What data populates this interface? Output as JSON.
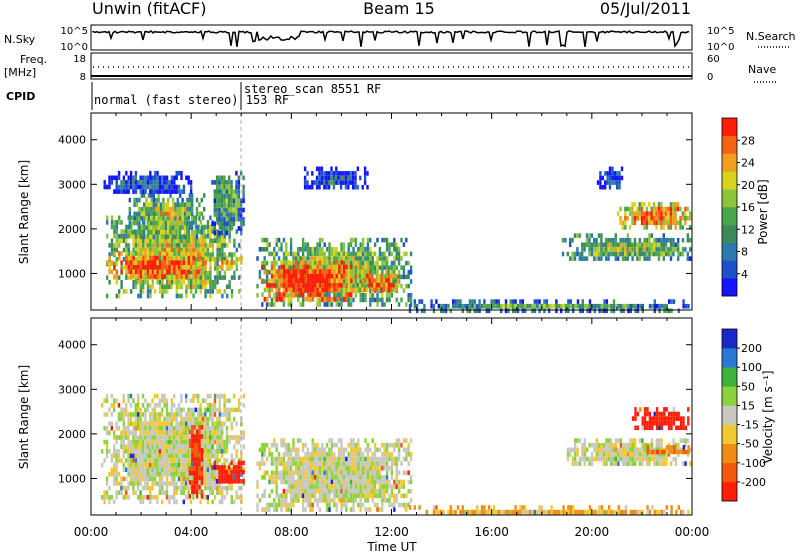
{
  "header": {
    "station": "Unwin (fitACF)",
    "beam": "Beam 15",
    "date": "05/Jul/2011"
  },
  "status_panels": {
    "nsky_label": "N.Sky",
    "nsky_ticks": [
      "10^5",
      "10^0"
    ],
    "nsearch_label": "N.Search",
    "nsearch_ticks": [
      "10^5",
      "10^0"
    ],
    "freq_label": "Freq.",
    "freq_unit": "[MHz]",
    "freq_ticks": [
      "18",
      "8"
    ],
    "nave_label": "Nave",
    "nave_ticks": [
      "60",
      "0"
    ],
    "cpid_label": "CPID",
    "cpid_modes": [
      "normal (fast stereo) 153 RF",
      "stereo_scan 8551 RF"
    ]
  },
  "chart_data": [
    {
      "type": "heatmap",
      "name": "power",
      "ylabel": "Slant Range [km]",
      "xlabel": "Time UT",
      "x_ticks": [
        "00:00",
        "04:00",
        "08:00",
        "12:00",
        "16:00",
        "20:00",
        "00:00"
      ],
      "y_ticks": [
        1000,
        2000,
        3000,
        4000
      ],
      "xlim_hours": [
        0,
        24
      ],
      "ylim_km": [
        180,
        4600
      ],
      "colorbar": {
        "label": "Power [dB]",
        "ticks": [
          4,
          8,
          12,
          16,
          20,
          24,
          28
        ],
        "range": [
          0,
          32
        ],
        "colors": [
          "#1414ff",
          "#1e50c8",
          "#2a7ab0",
          "#3c8a5a",
          "#4aa64a",
          "#8cc43c",
          "#d6d21e",
          "#f0a01e",
          "#f06414",
          "#ff1e0a"
        ]
      },
      "regions": [
        {
          "t0": 0.6,
          "t1": 5.9,
          "r0": 450,
          "r1": 2300,
          "level": 0.55
        },
        {
          "t0": 0.6,
          "t1": 4.6,
          "r0": 900,
          "r1": 1500,
          "level": 0.85
        },
        {
          "t0": 1.5,
          "t1": 4.5,
          "r0": 1800,
          "r1": 2800,
          "level": 0.5
        },
        {
          "t0": 4.8,
          "t1": 6.1,
          "r0": 1900,
          "r1": 3300,
          "level": 0.35
        },
        {
          "t0": 0.5,
          "t1": 4.0,
          "r0": 2800,
          "r1": 3300,
          "level": 0.15
        },
        {
          "t0": 5.1,
          "t1": 6.0,
          "r0": 1150,
          "r1": 1400,
          "level": 0.75
        },
        {
          "t0": 6.6,
          "t1": 12.8,
          "r0": 280,
          "r1": 1800,
          "level": 0.5
        },
        {
          "t0": 6.8,
          "t1": 10.5,
          "r0": 400,
          "r1": 1300,
          "level": 0.9
        },
        {
          "t0": 10.6,
          "t1": 12.4,
          "r0": 600,
          "r1": 1100,
          "level": 0.75
        },
        {
          "t0": 8.5,
          "t1": 11.0,
          "r0": 2900,
          "r1": 3400,
          "level": 0.1
        },
        {
          "t0": 12.5,
          "t1": 24.0,
          "r0": 200,
          "r1": 420,
          "level": 0.35
        },
        {
          "t0": 18.8,
          "t1": 23.9,
          "r0": 1300,
          "r1": 1900,
          "level": 0.45
        },
        {
          "t0": 21.0,
          "t1": 23.9,
          "r0": 2050,
          "r1": 2600,
          "level": 0.75
        },
        {
          "t0": 20.2,
          "t1": 21.3,
          "r0": 2900,
          "r1": 3400,
          "level": 0.1
        }
      ]
    },
    {
      "type": "heatmap",
      "name": "velocity",
      "ylabel": "Slant Range [km]",
      "xlabel": "Time UT",
      "x_ticks": [
        "00:00",
        "04:00",
        "08:00",
        "12:00",
        "16:00",
        "20:00",
        "00:00"
      ],
      "y_ticks": [
        1000,
        2000,
        3000,
        4000
      ],
      "xlim_hours": [
        0,
        24
      ],
      "ylim_km": [
        180,
        4600
      ],
      "colorbar": {
        "label": "Velocity [m s⁻¹]",
        "ticks": [
          200,
          100,
          50,
          15,
          -15,
          -50,
          -100,
          -200
        ],
        "colors": [
          "#1a28c8",
          "#2a7ad2",
          "#3cb43c",
          "#8cd23c",
          "#c8c8c0",
          "#f0c832",
          "#f08c14",
          "#f05a0a",
          "#ff1e0a"
        ]
      },
      "regions": [
        {
          "t0": 0.4,
          "t1": 6.1,
          "r0": 500,
          "r1": 2900,
          "v": 0
        },
        {
          "t0": 4.8,
          "t1": 6.1,
          "r0": 900,
          "r1": 1400,
          "v": -200
        },
        {
          "t0": 3.9,
          "t1": 4.4,
          "r0": 600,
          "r1": 2200,
          "v": -160
        },
        {
          "t0": 6.6,
          "t1": 12.8,
          "r0": 300,
          "r1": 1900,
          "v": 0
        },
        {
          "t0": 12.5,
          "t1": 24.0,
          "r0": 200,
          "r1": 400,
          "v": -40
        },
        {
          "t0": 19.0,
          "t1": 23.9,
          "r0": 1300,
          "r1": 1900,
          "v": 0
        },
        {
          "t0": 21.6,
          "t1": 23.9,
          "r0": 2100,
          "r1": 2600,
          "v": -200
        },
        {
          "t0": 22.0,
          "t1": 23.9,
          "r0": 1550,
          "r1": 1750,
          "v": -70
        }
      ]
    }
  ]
}
